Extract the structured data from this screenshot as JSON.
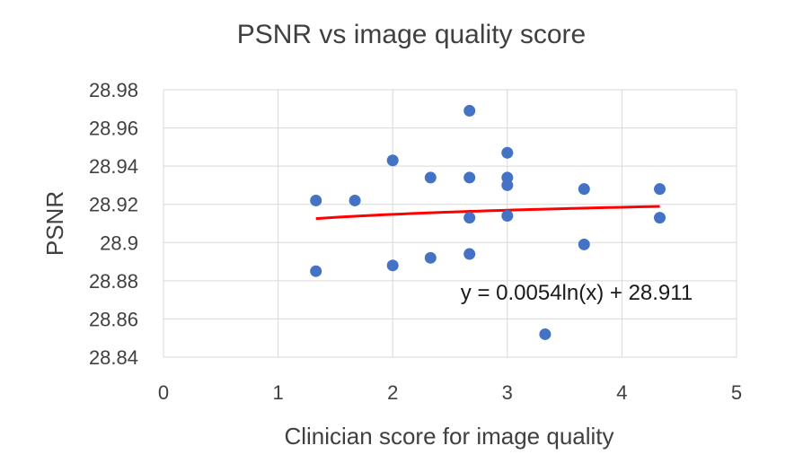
{
  "chart_data": {
    "type": "scatter",
    "title": "PSNR vs image quality score",
    "xlabel": "Clinician score for image quality",
    "ylabel": "PSNR",
    "xlim": [
      0,
      5
    ],
    "ylim": [
      28.84,
      28.98
    ],
    "x_ticks": [
      "0",
      "1",
      "2",
      "3",
      "4",
      "5"
    ],
    "y_ticks": [
      "28.84",
      "28.86",
      "28.88",
      "28.9",
      "28.92",
      "28.94",
      "28.96",
      "28.98"
    ],
    "grid": true,
    "marker_color": "#4472C4",
    "trendline_color": "#FF0000",
    "trendline": {
      "type": "logarithmic",
      "a": 0.0054,
      "b": 28.911,
      "x_range": [
        1.33,
        4.33
      ],
      "equation_label": "y = 0.0054ln(x) + 28.911"
    },
    "series": [
      {
        "points": [
          [
            1.33,
            28.922
          ],
          [
            1.33,
            28.885
          ],
          [
            1.67,
            28.922
          ],
          [
            2.0,
            28.943
          ],
          [
            2.0,
            28.888
          ],
          [
            2.33,
            28.934
          ],
          [
            2.33,
            28.892
          ],
          [
            2.67,
            28.969
          ],
          [
            2.67,
            28.934
          ],
          [
            2.67,
            28.913
          ],
          [
            2.67,
            28.894
          ],
          [
            3.0,
            28.947
          ],
          [
            3.0,
            28.934
          ],
          [
            3.0,
            28.93
          ],
          [
            3.0,
            28.914
          ],
          [
            3.33,
            28.852
          ],
          [
            3.67,
            28.928
          ],
          [
            3.67,
            28.899
          ],
          [
            4.33,
            28.928
          ],
          [
            4.33,
            28.913
          ]
        ]
      }
    ]
  }
}
